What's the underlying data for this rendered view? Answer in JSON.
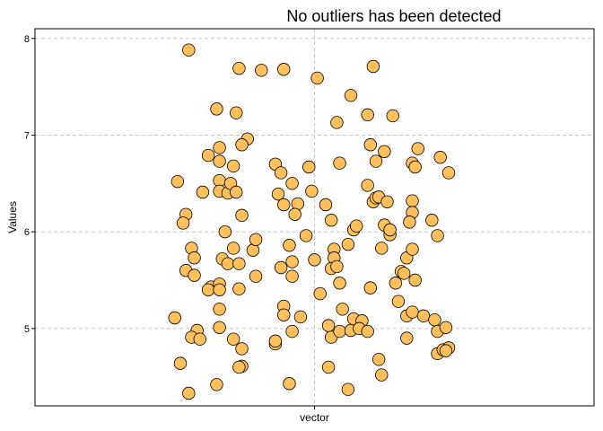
{
  "chart_data": {
    "type": "scatter",
    "title": "No outliers has been detected",
    "xlabel": "vector",
    "ylabel": "Values",
    "x_category": "vector",
    "ylim": [
      4.2,
      8.1
    ],
    "y_ticks": [
      5,
      6,
      7,
      8
    ],
    "grid": true,
    "point_color": "#ffbf5a",
    "points": [
      {
        "x": -0.45,
        "y": 7.88
      },
      {
        "x": -0.27,
        "y": 7.69
      },
      {
        "x": -0.19,
        "y": 7.67
      },
      {
        "x": -0.11,
        "y": 7.68
      },
      {
        "x": 0.01,
        "y": 7.59
      },
      {
        "x": 0.21,
        "y": 7.71
      },
      {
        "x": 0.13,
        "y": 7.41
      },
      {
        "x": 0.08,
        "y": 7.13
      },
      {
        "x": 0.28,
        "y": 7.2
      },
      {
        "x": 0.19,
        "y": 7.21
      },
      {
        "x": -0.35,
        "y": 7.27
      },
      {
        "x": -0.28,
        "y": 7.23
      },
      {
        "x": -0.24,
        "y": 6.96
      },
      {
        "x": -0.26,
        "y": 6.9
      },
      {
        "x": -0.34,
        "y": 6.87
      },
      {
        "x": -0.38,
        "y": 6.79
      },
      {
        "x": -0.34,
        "y": 6.73
      },
      {
        "x": -0.29,
        "y": 6.68
      },
      {
        "x": -0.14,
        "y": 6.7
      },
      {
        "x": -0.12,
        "y": 6.61
      },
      {
        "x": -0.02,
        "y": 6.67
      },
      {
        "x": 0.09,
        "y": 6.71
      },
      {
        "x": 0.2,
        "y": 6.9
      },
      {
        "x": 0.25,
        "y": 6.83
      },
      {
        "x": 0.22,
        "y": 6.73
      },
      {
        "x": 0.37,
        "y": 6.86
      },
      {
        "x": 0.35,
        "y": 6.71
      },
      {
        "x": 0.36,
        "y": 6.67
      },
      {
        "x": 0.45,
        "y": 6.77
      },
      {
        "x": 0.48,
        "y": 6.61
      },
      {
        "x": -0.49,
        "y": 6.52
      },
      {
        "x": -0.4,
        "y": 6.41
      },
      {
        "x": -0.34,
        "y": 6.53
      },
      {
        "x": -0.34,
        "y": 6.42
      },
      {
        "x": -0.31,
        "y": 6.4
      },
      {
        "x": -0.3,
        "y": 6.5
      },
      {
        "x": -0.28,
        "y": 6.41
      },
      {
        "x": -0.13,
        "y": 6.39
      },
      {
        "x": -0.11,
        "y": 6.28
      },
      {
        "x": -0.08,
        "y": 6.5
      },
      {
        "x": -0.06,
        "y": 6.29
      },
      {
        "x": -0.01,
        "y": 6.42
      },
      {
        "x": 0.04,
        "y": 6.28
      },
      {
        "x": 0.19,
        "y": 6.48
      },
      {
        "x": 0.21,
        "y": 6.31
      },
      {
        "x": 0.22,
        "y": 6.35
      },
      {
        "x": 0.23,
        "y": 6.36
      },
      {
        "x": 0.26,
        "y": 6.31
      },
      {
        "x": 0.35,
        "y": 6.32
      },
      {
        "x": 0.35,
        "y": 6.2
      },
      {
        "x": -0.46,
        "y": 6.18
      },
      {
        "x": -0.47,
        "y": 6.09
      },
      {
        "x": -0.26,
        "y": 6.17
      },
      {
        "x": -0.32,
        "y": 6.0
      },
      {
        "x": -0.07,
        "y": 6.18
      },
      {
        "x": 0.06,
        "y": 6.12
      },
      {
        "x": 0.14,
        "y": 6.02
      },
      {
        "x": 0.15,
        "y": 6.06
      },
      {
        "x": 0.25,
        "y": 6.07
      },
      {
        "x": 0.27,
        "y": 5.97
      },
      {
        "x": 0.27,
        "y": 6.02
      },
      {
        "x": 0.34,
        "y": 6.1
      },
      {
        "x": 0.42,
        "y": 6.12
      },
      {
        "x": 0.44,
        "y": 5.96
      },
      {
        "x": -0.44,
        "y": 5.83
      },
      {
        "x": -0.43,
        "y": 5.73
      },
      {
        "x": -0.46,
        "y": 5.6
      },
      {
        "x": -0.43,
        "y": 5.55
      },
      {
        "x": -0.33,
        "y": 5.72
      },
      {
        "x": -0.31,
        "y": 5.67
      },
      {
        "x": -0.29,
        "y": 5.83
      },
      {
        "x": -0.27,
        "y": 5.67
      },
      {
        "x": -0.22,
        "y": 5.81
      },
      {
        "x": -0.21,
        "y": 5.92
      },
      {
        "x": -0.09,
        "y": 5.86
      },
      {
        "x": -0.08,
        "y": 5.69
      },
      {
        "x": -0.03,
        "y": 5.96
      },
      {
        "x": 0.0,
        "y": 5.71
      },
      {
        "x": 0.07,
        "y": 5.82
      },
      {
        "x": 0.07,
        "y": 5.73
      },
      {
        "x": 0.06,
        "y": 5.62
      },
      {
        "x": 0.08,
        "y": 5.64
      },
      {
        "x": 0.12,
        "y": 5.87
      },
      {
        "x": 0.24,
        "y": 5.83
      },
      {
        "x": 0.31,
        "y": 5.59
      },
      {
        "x": 0.32,
        "y": 5.57
      },
      {
        "x": 0.33,
        "y": 5.73
      },
      {
        "x": 0.35,
        "y": 5.82
      },
      {
        "x": 0.36,
        "y": 5.5
      },
      {
        "x": -0.37,
        "y": 5.43
      },
      {
        "x": -0.38,
        "y": 5.4
      },
      {
        "x": -0.34,
        "y": 5.46
      },
      {
        "x": -0.34,
        "y": 5.4
      },
      {
        "x": -0.27,
        "y": 5.41
      },
      {
        "x": -0.21,
        "y": 5.54
      },
      {
        "x": -0.12,
        "y": 5.63
      },
      {
        "x": -0.08,
        "y": 5.54
      },
      {
        "x": -0.11,
        "y": 5.23
      },
      {
        "x": -0.11,
        "y": 5.14
      },
      {
        "x": -0.05,
        "y": 5.12
      },
      {
        "x": 0.02,
        "y": 5.36
      },
      {
        "x": 0.09,
        "y": 5.47
      },
      {
        "x": 0.2,
        "y": 5.42
      },
      {
        "x": 0.29,
        "y": 5.47
      },
      {
        "x": 0.3,
        "y": 5.28
      },
      {
        "x": 0.33,
        "y": 5.13
      },
      {
        "x": 0.35,
        "y": 5.17
      },
      {
        "x": 0.39,
        "y": 5.13
      },
      {
        "x": -0.5,
        "y": 5.11
      },
      {
        "x": -0.42,
        "y": 4.98
      },
      {
        "x": -0.44,
        "y": 4.91
      },
      {
        "x": -0.41,
        "y": 4.89
      },
      {
        "x": -0.34,
        "y": 5.2
      },
      {
        "x": -0.34,
        "y": 5.01
      },
      {
        "x": -0.29,
        "y": 4.89
      },
      {
        "x": -0.26,
        "y": 4.79
      },
      {
        "x": -0.26,
        "y": 4.61
      },
      {
        "x": -0.14,
        "y": 4.84
      },
      {
        "x": -0.14,
        "y": 4.87
      },
      {
        "x": -0.08,
        "y": 4.97
      },
      {
        "x": 0.05,
        "y": 5.03
      },
      {
        "x": 0.06,
        "y": 4.91
      },
      {
        "x": 0.1,
        "y": 5.2
      },
      {
        "x": 0.09,
        "y": 4.97
      },
      {
        "x": 0.13,
        "y": 4.98
      },
      {
        "x": 0.14,
        "y": 5.1
      },
      {
        "x": 0.17,
        "y": 5.08
      },
      {
        "x": 0.16,
        "y": 5.0
      },
      {
        "x": 0.19,
        "y": 4.97
      },
      {
        "x": 0.23,
        "y": 4.68
      },
      {
        "x": 0.33,
        "y": 4.9
      },
      {
        "x": 0.43,
        "y": 5.09
      },
      {
        "x": 0.44,
        "y": 4.97
      },
      {
        "x": 0.47,
        "y": 5.01
      },
      {
        "x": 0.44,
        "y": 4.74
      },
      {
        "x": 0.46,
        "y": 4.78
      },
      {
        "x": 0.48,
        "y": 4.8
      },
      {
        "x": 0.47,
        "y": 4.77
      },
      {
        "x": -0.48,
        "y": 4.64
      },
      {
        "x": -0.45,
        "y": 4.33
      },
      {
        "x": -0.35,
        "y": 4.42
      },
      {
        "x": -0.27,
        "y": 4.6
      },
      {
        "x": -0.09,
        "y": 4.43
      },
      {
        "x": 0.05,
        "y": 4.6
      },
      {
        "x": 0.12,
        "y": 4.37
      },
      {
        "x": 0.24,
        "y": 4.52
      }
    ]
  }
}
